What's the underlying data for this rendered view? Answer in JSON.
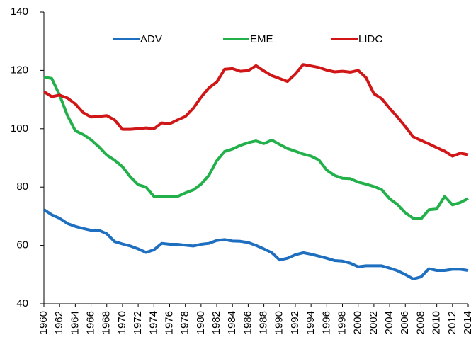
{
  "chart_data": {
    "type": "line",
    "x": [
      1960,
      1961,
      1962,
      1963,
      1964,
      1965,
      1966,
      1967,
      1968,
      1969,
      1970,
      1971,
      1972,
      1973,
      1974,
      1975,
      1976,
      1977,
      1978,
      1979,
      1980,
      1981,
      1982,
      1983,
      1984,
      1985,
      1986,
      1987,
      1988,
      1989,
      1990,
      1991,
      1992,
      1993,
      1994,
      1995,
      1996,
      1997,
      1998,
      1999,
      2000,
      2001,
      2002,
      2003,
      2004,
      2005,
      2006,
      2007,
      2008,
      2009,
      2010,
      2011,
      2012,
      2013,
      2014
    ],
    "series": [
      {
        "name": "ADV",
        "color": "#1f6fc0",
        "values": [
          72.3,
          70.5,
          69.3,
          67.5,
          66.5,
          65.8,
          65.2,
          65.2,
          64,
          61.3,
          60.5,
          59.8,
          58.8,
          57.6,
          58.5,
          60.7,
          60.4,
          60.4,
          60.1,
          59.8,
          60.4,
          60.7,
          61.7,
          62,
          61.5,
          61.4,
          61,
          60,
          58.8,
          57.5,
          55,
          55.6,
          56.8,
          57.5,
          57,
          56.3,
          55.6,
          54.8,
          54.6,
          53.9,
          52.7,
          53,
          53,
          53,
          52.2,
          51.3,
          50,
          48.5,
          49.2,
          52,
          51.4,
          51.4,
          51.8,
          51.8,
          51.4
        ]
      },
      {
        "name": "EME",
        "color": "#22b04b",
        "values": [
          117.7,
          117.2,
          111.5,
          104.5,
          99.3,
          98,
          96.2,
          93.8,
          91,
          89.2,
          87,
          83.5,
          80.8,
          80,
          76.8,
          76.8,
          76.8,
          76.8,
          78,
          79,
          81,
          84,
          89,
          92.2,
          93,
          94.3,
          95.2,
          95.8,
          94.9,
          96.1,
          94.6,
          93.2,
          92.3,
          91.3,
          90.6,
          89.3,
          85.8,
          84,
          83,
          82.9,
          81.7,
          81,
          80.2,
          79.1,
          76,
          74,
          71.2,
          69.3,
          69.1,
          72.2,
          72.5,
          76.8,
          73.9,
          74.7,
          76.1
        ]
      },
      {
        "name": "LIDC",
        "color": "#d01616",
        "values": [
          112.7,
          111,
          111.5,
          110.5,
          108.5,
          105.5,
          104,
          104.2,
          104.5,
          103,
          99.8,
          99.8,
          100,
          100.3,
          100,
          102,
          101.7,
          103,
          104.2,
          107,
          110.8,
          114,
          116,
          120.4,
          120.6,
          119.7,
          119.9,
          121.6,
          119.8,
          118.2,
          117.2,
          116.2,
          118.8,
          122,
          121.5,
          121,
          120.1,
          119.5,
          119.7,
          119.4,
          120,
          117.5,
          112,
          110.3,
          107,
          104,
          100.7,
          97.2,
          96,
          94.8,
          93.5,
          92.3,
          90.6,
          91.6,
          91.1
        ]
      }
    ],
    "xlim": [
      1960,
      2014
    ],
    "xticks": [
      1960,
      1962,
      1964,
      1966,
      1968,
      1970,
      1972,
      1974,
      1976,
      1978,
      1980,
      1982,
      1984,
      1986,
      1988,
      1990,
      1992,
      1994,
      1996,
      1998,
      2000,
      2002,
      2004,
      2006,
      2008,
      2010,
      2012,
      2014
    ],
    "ylim": [
      40,
      140
    ],
    "yticks": [
      40,
      60,
      80,
      100,
      120,
      140
    ],
    "grid": false
  }
}
